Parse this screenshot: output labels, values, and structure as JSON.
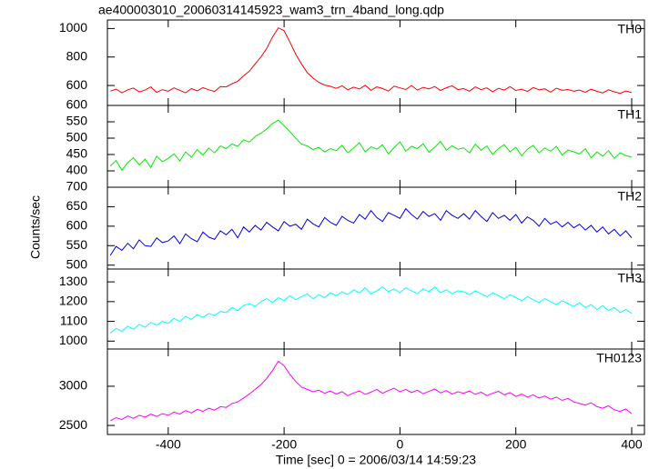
{
  "chart_data": [
    {
      "type": "line",
      "title": "ae400003010_20060314145923_wam3_trn_4band_long.qdp",
      "x": [
        -500,
        -490,
        -480,
        -470,
        -460,
        -450,
        -440,
        -430,
        -420,
        -410,
        -400,
        -390,
        -380,
        -370,
        -360,
        -350,
        -340,
        -330,
        -320,
        -310,
        -300,
        -290,
        -280,
        -270,
        -260,
        -250,
        -240,
        -230,
        -220,
        -210,
        -200,
        -190,
        -180,
        -170,
        -160,
        -150,
        -140,
        -130,
        -120,
        -110,
        -100,
        -90,
        -80,
        -70,
        -60,
        -50,
        -40,
        -30,
        -20,
        -10,
        0,
        10,
        20,
        30,
        40,
        50,
        60,
        70,
        80,
        90,
        100,
        110,
        120,
        130,
        140,
        150,
        160,
        170,
        180,
        190,
        200,
        210,
        220,
        230,
        240,
        250,
        260,
        270,
        280,
        290,
        300,
        310,
        320,
        330,
        340,
        350,
        360,
        370,
        380,
        390,
        400
      ],
      "xlim": [
        -505,
        422
      ],
      "xticks": [
        -400,
        -200,
        0,
        200,
        400
      ],
      "ylim": [
        460,
        1060
      ],
      "yticks": [
        600,
        800,
        1000
      ],
      "series": [
        {
          "name": "TH0",
          "color": "#ff0000",
          "values": [
            560,
            575,
            548,
            570,
            582,
            555,
            568,
            590,
            552,
            571,
            560,
            583,
            566,
            549,
            578,
            562,
            585,
            570,
            558,
            592,
            590,
            612,
            630,
            668,
            700,
            752,
            800,
            860,
            940,
            1005,
            985,
            905,
            820,
            752,
            690,
            652,
            622,
            603,
            594,
            580,
            598,
            570,
            588,
            575,
            602,
            566,
            590,
            579,
            561,
            595,
            583,
            572,
            600,
            568,
            587,
            576,
            593,
            565,
            584,
            598,
            571,
            578,
            560,
            590,
            571,
            583,
            556,
            580,
            568,
            592,
            565,
            574,
            558,
            586,
            569,
            577,
            553,
            581,
            566,
            572,
            560,
            568,
            552,
            574,
            559,
            548,
            570,
            556,
            545,
            562,
            550
          ]
        }
      ]
    },
    {
      "type": "line",
      "x": [
        -500,
        -490,
        -480,
        -470,
        -460,
        -450,
        -440,
        -430,
        -420,
        -410,
        -400,
        -390,
        -380,
        -370,
        -360,
        -350,
        -340,
        -330,
        -320,
        -310,
        -300,
        -290,
        -280,
        -270,
        -260,
        -250,
        -240,
        -230,
        -220,
        -210,
        -200,
        -190,
        -180,
        -170,
        -160,
        -150,
        -140,
        -130,
        -120,
        -110,
        -100,
        -90,
        -80,
        -70,
        -60,
        -50,
        -40,
        -30,
        -20,
        -10,
        0,
        10,
        20,
        30,
        40,
        50,
        60,
        70,
        80,
        90,
        100,
        110,
        120,
        130,
        140,
        150,
        160,
        170,
        180,
        190,
        200,
        210,
        220,
        230,
        240,
        250,
        260,
        270,
        280,
        290,
        300,
        310,
        320,
        330,
        340,
        350,
        360,
        370,
        380,
        390,
        400
      ],
      "xlim": [
        -505,
        422
      ],
      "xticks": [
        -400,
        -200,
        0,
        200,
        400
      ],
      "ylim": [
        350,
        600
      ],
      "yticks": [
        400,
        450,
        500,
        550,
        600
      ],
      "series": [
        {
          "name": "TH1",
          "color": "#00ee00",
          "values": [
            415,
            432,
            402,
            425,
            440,
            418,
            436,
            410,
            445,
            428,
            438,
            452,
            430,
            458,
            442,
            465,
            448,
            470,
            455,
            476,
            468,
            482,
            475,
            495,
            488,
            505,
            515,
            528,
            545,
            555,
            538,
            520,
            500,
            482,
            476,
            465,
            472,
            458,
            468,
            462,
            478,
            455,
            470,
            486,
            458,
            474,
            466,
            480,
            452,
            471,
            489,
            460,
            475,
            468,
            483,
            457,
            472,
            490,
            463,
            477,
            466,
            470,
            455,
            482,
            463,
            476,
            450,
            468,
            480,
            458,
            472,
            446,
            466,
            478,
            455,
            470,
            460,
            475,
            448,
            464,
            458,
            452,
            468,
            440,
            458,
            445,
            462,
            438,
            455,
            447,
            442
          ]
        }
      ]
    },
    {
      "type": "line",
      "y_label": "Counts/sec",
      "x": [
        -500,
        -490,
        -480,
        -470,
        -460,
        -450,
        -440,
        -430,
        -420,
        -410,
        -400,
        -390,
        -380,
        -370,
        -360,
        -350,
        -340,
        -330,
        -320,
        -310,
        -300,
        -290,
        -280,
        -270,
        -260,
        -250,
        -240,
        -230,
        -220,
        -210,
        -200,
        -190,
        -180,
        -170,
        -160,
        -150,
        -140,
        -130,
        -120,
        -110,
        -100,
        -90,
        -80,
        -70,
        -60,
        -50,
        -40,
        -30,
        -20,
        -10,
        0,
        10,
        20,
        30,
        40,
        50,
        60,
        70,
        80,
        90,
        100,
        110,
        120,
        130,
        140,
        150,
        160,
        170,
        180,
        190,
        200,
        210,
        220,
        230,
        240,
        250,
        260,
        270,
        280,
        290,
        300,
        310,
        320,
        330,
        340,
        350,
        360,
        370,
        380,
        390,
        400
      ],
      "xlim": [
        -505,
        422
      ],
      "xticks": [
        -400,
        -200,
        0,
        200,
        400
      ],
      "ylim": [
        490,
        700
      ],
      "yticks": [
        500,
        550,
        600,
        650,
        700
      ],
      "series": [
        {
          "name": "TH2",
          "color": "#0000dd",
          "values": [
            525,
            548,
            538,
            556,
            542,
            565,
            550,
            548,
            570,
            558,
            562,
            575,
            555,
            580,
            568,
            560,
            585,
            572,
            566,
            588,
            578,
            592,
            570,
            598,
            585,
            602,
            590,
            610,
            598,
            588,
            612,
            600,
            605,
            592,
            618,
            606,
            598,
            622,
            610,
            602,
            625,
            615,
            608,
            630,
            618,
            640,
            622,
            612,
            635,
            628,
            620,
            645,
            630,
            618,
            638,
            625,
            632,
            615,
            640,
            628,
            620,
            632,
            618,
            640,
            625,
            612,
            635,
            620,
            628,
            615,
            630,
            608,
            624,
            615,
            600,
            620,
            605,
            612,
            598,
            610,
            596,
            605,
            590,
            602,
            585,
            598,
            580,
            592,
            575,
            588,
            570
          ]
        }
      ]
    },
    {
      "type": "line",
      "x": [
        -500,
        -490,
        -480,
        -470,
        -460,
        -450,
        -440,
        -430,
        -420,
        -410,
        -400,
        -390,
        -380,
        -370,
        -360,
        -350,
        -340,
        -330,
        -320,
        -310,
        -300,
        -290,
        -280,
        -270,
        -260,
        -250,
        -240,
        -230,
        -220,
        -210,
        -200,
        -190,
        -180,
        -170,
        -160,
        -150,
        -140,
        -130,
        -120,
        -110,
        -100,
        -90,
        -80,
        -70,
        -60,
        -50,
        -40,
        -30,
        -20,
        -10,
        0,
        10,
        20,
        30,
        40,
        50,
        60,
        70,
        80,
        90,
        100,
        110,
        120,
        130,
        140,
        150,
        160,
        170,
        180,
        190,
        200,
        210,
        220,
        230,
        240,
        250,
        260,
        270,
        280,
        290,
        300,
        310,
        320,
        330,
        340,
        350,
        360,
        370,
        380,
        390,
        400
      ],
      "xlim": [
        -505,
        422
      ],
      "xticks": [
        -400,
        -200,
        0,
        200,
        400
      ],
      "ylim": [
        960,
        1365
      ],
      "yticks": [
        1000,
        1100,
        1200,
        1300
      ],
      "series": [
        {
          "name": "TH3",
          "color": "#00ffff",
          "values": [
            1040,
            1065,
            1050,
            1075,
            1060,
            1085,
            1070,
            1095,
            1080,
            1100,
            1090,
            1115,
            1100,
            1125,
            1110,
            1135,
            1120,
            1140,
            1130,
            1150,
            1145,
            1170,
            1155,
            1180,
            1190,
            1175,
            1200,
            1215,
            1195,
            1220,
            1205,
            1230,
            1210,
            1225,
            1240,
            1215,
            1235,
            1220,
            1245,
            1230,
            1250,
            1235,
            1260,
            1245,
            1270,
            1240,
            1255,
            1275,
            1250,
            1265,
            1245,
            1270,
            1255,
            1240,
            1265,
            1250,
            1275,
            1245,
            1260,
            1240,
            1255,
            1250,
            1235,
            1255,
            1240,
            1225,
            1245,
            1230,
            1215,
            1235,
            1220,
            1205,
            1225,
            1210,
            1195,
            1215,
            1200,
            1185,
            1205,
            1190,
            1175,
            1195,
            1170,
            1185,
            1160,
            1180,
            1155,
            1170,
            1145,
            1160,
            1140
          ]
        }
      ]
    },
    {
      "type": "line",
      "x_label": "Time [sec] 0 = 2006/03/14 14:59:23",
      "x": [
        -500,
        -490,
        -480,
        -470,
        -460,
        -450,
        -440,
        -430,
        -420,
        -410,
        -400,
        -390,
        -380,
        -370,
        -360,
        -350,
        -340,
        -330,
        -320,
        -310,
        -300,
        -290,
        -280,
        -270,
        -260,
        -250,
        -240,
        -230,
        -220,
        -210,
        -200,
        -190,
        -180,
        -170,
        -160,
        -150,
        -140,
        -130,
        -120,
        -110,
        -100,
        -90,
        -80,
        -70,
        -60,
        -50,
        -40,
        -30,
        -20,
        -10,
        0,
        10,
        20,
        30,
        40,
        50,
        60,
        70,
        80,
        90,
        100,
        110,
        120,
        130,
        140,
        150,
        160,
        170,
        180,
        190,
        200,
        210,
        220,
        230,
        240,
        250,
        260,
        270,
        280,
        290,
        300,
        310,
        320,
        330,
        340,
        350,
        360,
        370,
        380,
        390,
        400
      ],
      "xlim": [
        -505,
        422
      ],
      "xticks": [
        -400,
        -200,
        0,
        200,
        400
      ],
      "ylim": [
        2385,
        3475
      ],
      "yticks": [
        2500,
        3000
      ],
      "series": [
        {
          "name": "TH0123",
          "color": "#ff00ff",
          "values": [
            2560,
            2600,
            2575,
            2620,
            2590,
            2630,
            2605,
            2645,
            2615,
            2650,
            2630,
            2670,
            2645,
            2690,
            2660,
            2705,
            2680,
            2720,
            2695,
            2740,
            2730,
            2780,
            2800,
            2850,
            2900,
            2960,
            3020,
            3100,
            3200,
            3320,
            3260,
            3150,
            3060,
            2990,
            2960,
            2930,
            2950,
            2910,
            2940,
            2900,
            2930,
            2880,
            2915,
            2940,
            2895,
            2925,
            2960,
            2910,
            2945,
            2975,
            2930,
            2960,
            2920,
            2950,
            2905,
            2935,
            2965,
            2915,
            2945,
            2900,
            2930,
            2910,
            2940,
            2895,
            2925,
            2880,
            2910,
            2935,
            2890,
            2920,
            2870,
            2900,
            2860,
            2890,
            2850,
            2875,
            2835,
            2860,
            2820,
            2845,
            2800,
            2780,
            2760,
            2790,
            2740,
            2720,
            2750,
            2700,
            2680,
            2710,
            2650
          ]
        }
      ]
    }
  ]
}
